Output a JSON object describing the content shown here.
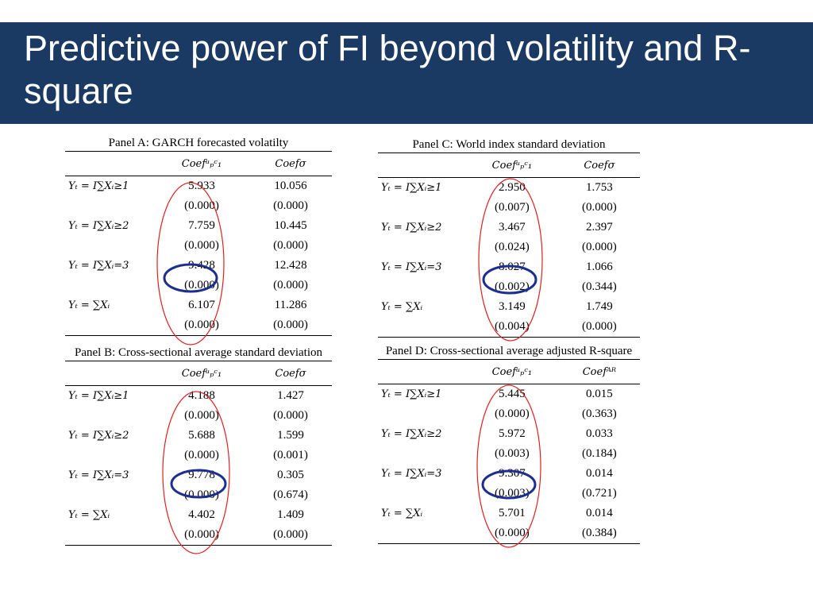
{
  "slide": {
    "title": "Predictive power of FI beyond volatility and R-square"
  },
  "row_labels": [
    "Yₜ = I∑Xᵢ≥1",
    "Yₜ = I∑Xᵢ≥2",
    "Yₜ = I∑Xᵢ=3",
    "Yₜ = ∑Xᵢ"
  ],
  "panels": {
    "a": {
      "title": "Panel A: GARCH forecasted volatilty",
      "col1": "Coefᵘₚᶜ₁",
      "col2": "Coefσ",
      "rows": [
        {
          "c1": "5.933",
          "c2": "10.056",
          "p1": "(0.000)",
          "p2": "(0.000)"
        },
        {
          "c1": "7.759",
          "c2": "10.445",
          "p1": "(0.000)",
          "p2": "(0.000)"
        },
        {
          "c1": "9.428",
          "c2": "12.428",
          "p1": "(0.000)",
          "p2": "(0.000)"
        },
        {
          "c1": "6.107",
          "c2": "11.286",
          "p1": "(0.000)",
          "p2": "(0.000)"
        }
      ]
    },
    "b": {
      "title": "Panel B: Cross-sectional average standard deviation",
      "col1": "Coefᵘₚᶜ₁",
      "col2": "Coefσ",
      "rows": [
        {
          "c1": "4.188",
          "c2": "1.427",
          "p1": "(0.000)",
          "p2": "(0.000)"
        },
        {
          "c1": "5.688",
          "c2": "1.599",
          "p1": "(0.000)",
          "p2": "(0.001)"
        },
        {
          "c1": "9.778",
          "c2": "0.305",
          "p1": "(0.000)",
          "p2": "(0.674)"
        },
        {
          "c1": "4.402",
          "c2": "1.409",
          "p1": "(0.000)",
          "p2": "(0.000)"
        }
      ]
    },
    "c": {
      "title": "Panel C: World index standard deviation",
      "col1": "Coefᵘₚᶜ₁",
      "col2": "Coefσ",
      "rows": [
        {
          "c1": "2.950",
          "c2": "1.753",
          "p1": "(0.007)",
          "p2": "(0.000)"
        },
        {
          "c1": "3.467",
          "c2": "2.397",
          "p1": "(0.024)",
          "p2": "(0.000)"
        },
        {
          "c1": "8.027",
          "c2": "1.066",
          "p1": "(0.002)",
          "p2": "(0.344)"
        },
        {
          "c1": "3.149",
          "c2": "1.749",
          "p1": "(0.004)",
          "p2": "(0.000)"
        }
      ]
    },
    "d": {
      "title": "Panel D: Cross-sectional average adjusted R-square",
      "col1": "Coefᵘₚᶜ₁",
      "col2": "Coefᴬᴿ",
      "rows": [
        {
          "c1": "5.445",
          "c2": "0.015",
          "p1": "(0.000)",
          "p2": "(0.363)"
        },
        {
          "c1": "5.972",
          "c2": "0.033",
          "p1": "(0.003)",
          "p2": "(0.184)"
        },
        {
          "c1": "9.307",
          "c2": "0.014",
          "p1": "(0.003)",
          "p2": "(0.721)"
        },
        {
          "c1": "5.701",
          "c2": "0.014",
          "p1": "(0.000)",
          "p2": "(0.384)"
        }
      ]
    }
  },
  "highlight_colors": {
    "column_ellipse": "#e02020",
    "value_ellipse": "#1c2f8f"
  }
}
